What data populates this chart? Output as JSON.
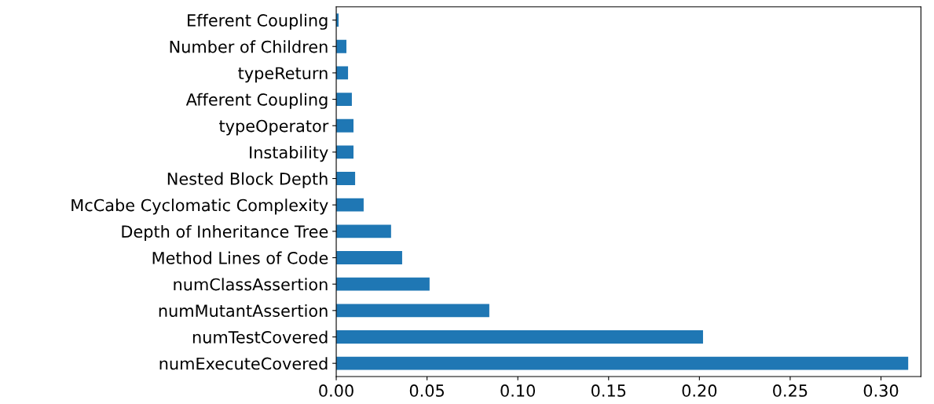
{
  "chart_data": {
    "type": "bar",
    "orientation": "horizontal",
    "categories": [
      "Efferent Coupling",
      "Number of Children",
      "typeReturn",
      "Afferent Coupling",
      "typeOperator",
      "Instability",
      "Nested Block Depth",
      "McCabe Cyclomatic Complexity",
      "Depth of Inheritance Tree",
      "Method Lines of Code",
      "numClassAssertion",
      "numMutantAssertion",
      "numTestCovered",
      "numExecuteCovered"
    ],
    "values": [
      0.0013,
      0.0056,
      0.0065,
      0.0086,
      0.0095,
      0.0095,
      0.0104,
      0.0151,
      0.0302,
      0.0363,
      0.0514,
      0.0843,
      0.202,
      0.315
    ],
    "color": "#1f77b4",
    "xlim": [
      0,
      0.322
    ],
    "xticks": [
      {
        "value": 0,
        "label": "0.00"
      },
      {
        "value": 0.05,
        "label": "0.05"
      },
      {
        "value": 0.1,
        "label": "0.10"
      },
      {
        "value": 0.15,
        "label": "0.15"
      },
      {
        "value": 0.2,
        "label": "0.20"
      },
      {
        "value": 0.25,
        "label": "0.25"
      },
      {
        "value": 0.3,
        "label": "0.30"
      }
    ],
    "grid": false,
    "legend": false
  }
}
